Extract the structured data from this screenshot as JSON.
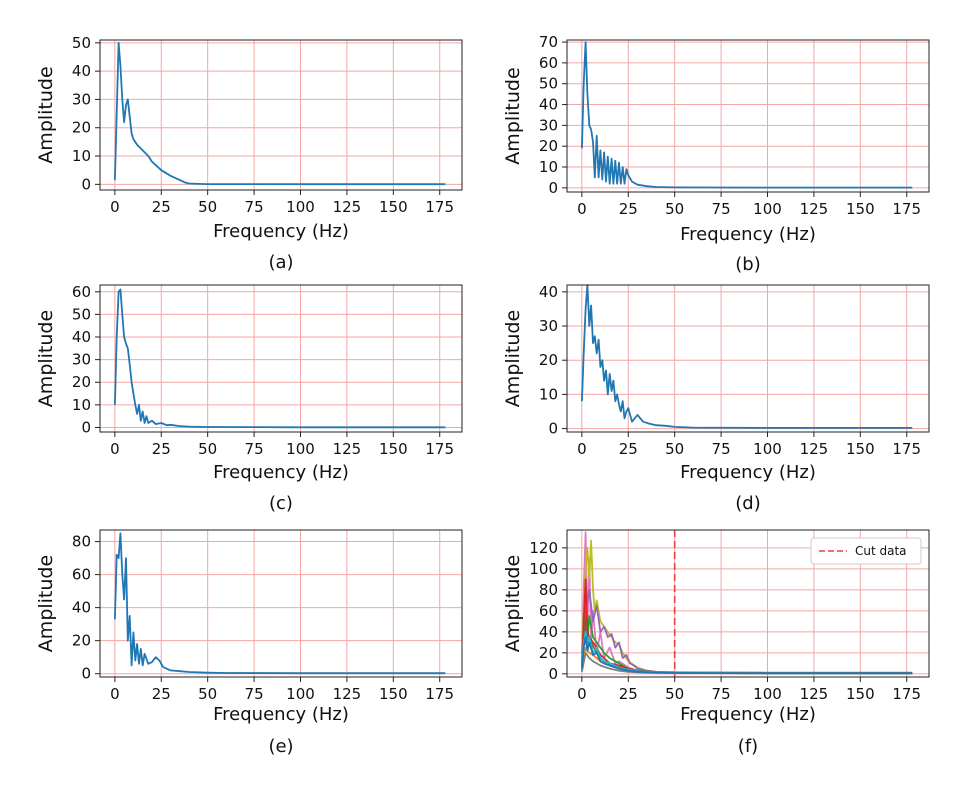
{
  "figure": {
    "panel_ids": [
      "a",
      "b",
      "c",
      "d",
      "e",
      "f"
    ],
    "captions": [
      "(a)",
      "(b)",
      "(c)",
      "(d)",
      "(e)",
      "(f)"
    ]
  },
  "chart_data": [
    {
      "id": "a",
      "type": "line",
      "caption": "(a)",
      "xlabel": "Frequency (Hz)",
      "ylabel": "Amplitude",
      "xlim": [
        -8,
        187
      ],
      "ylim": [
        -2,
        51
      ],
      "xticks": [
        0,
        25,
        50,
        75,
        100,
        125,
        150,
        175
      ],
      "yticks": [
        0,
        10,
        20,
        30,
        40,
        50
      ],
      "grid": true,
      "grid_color": "#f4a6a6",
      "series": [
        {
          "color": "#1f77b4",
          "x": [
            0,
            2,
            3,
            4,
            5,
            6,
            7,
            8,
            9,
            10,
            12,
            15,
            18,
            20,
            25,
            30,
            35,
            38,
            40,
            45,
            50,
            60,
            100,
            140,
            178
          ],
          "y": [
            1.5,
            50,
            42,
            30,
            22,
            28,
            30,
            24,
            18,
            16,
            14,
            12,
            10,
            8,
            5,
            3,
            1.5,
            0.6,
            0.3,
            0.15,
            0.1,
            0.08,
            0.05,
            0.05,
            0.05
          ]
        }
      ]
    },
    {
      "id": "b",
      "type": "line",
      "caption": "(b)",
      "xlabel": "Frequency (Hz)",
      "ylabel": "Amplitude",
      "xlim": [
        -8,
        187
      ],
      "ylim": [
        -2,
        71
      ],
      "xticks": [
        0,
        25,
        50,
        75,
        100,
        125,
        150,
        175
      ],
      "yticks": [
        0,
        10,
        20,
        30,
        40,
        50,
        60,
        70
      ],
      "grid": true,
      "grid_color": "#f4a6a6",
      "series": [
        {
          "color": "#1f77b4",
          "x": [
            0,
            1,
            2,
            3,
            4,
            5,
            6,
            7,
            8,
            9,
            10,
            11,
            12,
            13,
            14,
            15,
            16,
            17,
            18,
            19,
            20,
            21,
            22,
            23,
            24,
            25,
            27,
            30,
            35,
            40,
            50,
            100,
            178
          ],
          "y": [
            19,
            50,
            70,
            45,
            30,
            28,
            22,
            5,
            25,
            5,
            18,
            4,
            17,
            3,
            15,
            2,
            14,
            2,
            13,
            2,
            12,
            2,
            10,
            2,
            9,
            6,
            3,
            1.5,
            0.8,
            0.4,
            0.2,
            0.1,
            0.1
          ]
        }
      ]
    },
    {
      "id": "c",
      "type": "line",
      "caption": "(c)",
      "xlabel": "Frequency (Hz)",
      "ylabel": "Amplitude",
      "xlim": [
        -8,
        187
      ],
      "ylim": [
        -2,
        63
      ],
      "xticks": [
        0,
        25,
        50,
        75,
        100,
        125,
        150,
        175
      ],
      "yticks": [
        0,
        10,
        20,
        30,
        40,
        50,
        60
      ],
      "grid": true,
      "grid_color": "#f4a6a6",
      "series": [
        {
          "color": "#1f77b4",
          "x": [
            0,
            1,
            2,
            3,
            4,
            5,
            6,
            7,
            8,
            9,
            10,
            11,
            12,
            13,
            14,
            15,
            16,
            17,
            18,
            20,
            22,
            25,
            28,
            30,
            35,
            40,
            50,
            100,
            178
          ],
          "y": [
            10,
            40,
            60,
            61,
            50,
            40,
            37,
            35,
            28,
            20,
            15,
            10,
            6,
            10,
            3,
            7,
            2,
            5,
            2,
            3,
            1.5,
            2,
            1,
            1.2,
            0.6,
            0.4,
            0.2,
            0.1,
            0.1
          ]
        }
      ]
    },
    {
      "id": "d",
      "type": "line",
      "caption": "(d)",
      "xlabel": "Frequency (Hz)",
      "ylabel": "Amplitude",
      "xlim": [
        -8,
        187
      ],
      "ylim": [
        -1,
        42
      ],
      "xticks": [
        0,
        25,
        50,
        75,
        100,
        125,
        150,
        175
      ],
      "yticks": [
        0,
        10,
        20,
        30,
        40
      ],
      "grid": true,
      "grid_color": "#f4a6a6",
      "series": [
        {
          "color": "#1f77b4",
          "x": [
            0,
            1,
            2,
            3,
            4,
            5,
            6,
            7,
            8,
            9,
            10,
            11,
            12,
            13,
            14,
            15,
            16,
            17,
            18,
            19,
            20,
            21,
            22,
            23,
            24,
            25,
            27,
            30,
            33,
            36,
            40,
            45,
            50,
            60,
            100,
            178
          ],
          "y": [
            8,
            22,
            35,
            42,
            30,
            36,
            25,
            27,
            22,
            26,
            18,
            20,
            14,
            17,
            10,
            16,
            11,
            14,
            8,
            10,
            7,
            5,
            8,
            3,
            5,
            6,
            2,
            4,
            2,
            1.5,
            1,
            0.8,
            0.5,
            0.3,
            0.2,
            0.2
          ]
        }
      ]
    },
    {
      "id": "e",
      "type": "line",
      "caption": "(e)",
      "xlabel": "Frequency (Hz)",
      "ylabel": "Amplitude",
      "xlim": [
        -8,
        187
      ],
      "ylim": [
        -2,
        87
      ],
      "xticks": [
        0,
        25,
        50,
        75,
        100,
        125,
        150,
        175
      ],
      "yticks": [
        0,
        20,
        40,
        60,
        80
      ],
      "grid": true,
      "grid_color": "#f4a6a6",
      "series": [
        {
          "color": "#1f77b4",
          "x": [
            0,
            1,
            2,
            3,
            4,
            5,
            6,
            7,
            8,
            9,
            10,
            11,
            12,
            13,
            14,
            15,
            16,
            18,
            20,
            22,
            24,
            26,
            28,
            30,
            35,
            40,
            50,
            60,
            100,
            178
          ],
          "y": [
            33,
            72,
            70,
            85,
            60,
            45,
            70,
            20,
            35,
            5,
            25,
            8,
            18,
            6,
            15,
            5,
            12,
            6,
            7,
            10,
            8,
            4,
            3,
            2,
            1.5,
            1,
            0.6,
            0.4,
            0.3,
            0.3
          ]
        }
      ]
    },
    {
      "id": "f",
      "type": "line",
      "caption": "(f)",
      "xlabel": "Frequency (Hz)",
      "ylabel": "Amplitude",
      "xlim": [
        -8,
        187
      ],
      "ylim": [
        -3,
        137
      ],
      "xticks": [
        0,
        25,
        50,
        75,
        100,
        125,
        150,
        175
      ],
      "yticks": [
        0,
        20,
        40,
        60,
        80,
        100,
        120
      ],
      "grid": true,
      "grid_color": "#f4a6a6",
      "cut_line": {
        "x": 50,
        "color": "#e84040",
        "legend": "Cut data",
        "legend_position": "top-right"
      },
      "series": [
        {
          "color": "#e377c2",
          "x": [
            0,
            1,
            2,
            3,
            4,
            5,
            6,
            8,
            10,
            12,
            15,
            18,
            20,
            25,
            30,
            40,
            50,
            100,
            178
          ],
          "y": [
            10,
            80,
            135,
            40,
            110,
            30,
            60,
            20,
            40,
            15,
            25,
            10,
            12,
            6,
            3,
            1.5,
            1,
            0.8,
            0.8
          ]
        },
        {
          "color": "#bcbd22",
          "x": [
            0,
            1,
            2,
            3,
            4,
            5,
            6,
            7,
            8,
            10,
            12,
            14,
            16,
            18,
            20,
            22,
            25,
            30,
            35,
            40,
            50,
            100,
            178
          ],
          "y": [
            20,
            60,
            100,
            120,
            90,
            127,
            80,
            60,
            70,
            50,
            45,
            40,
            35,
            30,
            28,
            20,
            12,
            6,
            3,
            2,
            1.5,
            1.2,
            1.2
          ]
        },
        {
          "color": "#9467bd",
          "x": [
            0,
            2,
            4,
            6,
            8,
            10,
            12,
            14,
            16,
            18,
            20,
            22,
            24,
            26,
            28,
            30,
            35,
            40,
            50,
            100,
            178
          ],
          "y": [
            5,
            60,
            80,
            50,
            65,
            40,
            45,
            35,
            38,
            25,
            30,
            15,
            18,
            10,
            8,
            5,
            3,
            2,
            1.5,
            1,
            1
          ]
        },
        {
          "color": "#2ca02c",
          "x": [
            0,
            1,
            2,
            3,
            4,
            6,
            8,
            10,
            12,
            15,
            18,
            20,
            25,
            30,
            40,
            50,
            100,
            178
          ],
          "y": [
            5,
            40,
            65,
            30,
            55,
            35,
            30,
            25,
            20,
            15,
            12,
            10,
            5,
            3,
            1.5,
            1,
            0.6,
            0.6
          ]
        },
        {
          "color": "#d62728",
          "x": [
            0,
            1,
            2,
            3,
            4,
            6,
            8,
            10,
            12,
            15,
            20,
            25,
            30,
            40,
            50,
            100,
            178
          ],
          "y": [
            10,
            50,
            90,
            40,
            35,
            30,
            25,
            18,
            15,
            10,
            8,
            5,
            3,
            1.5,
            1,
            0.6,
            0.6
          ]
        },
        {
          "color": "#8c564b",
          "x": [
            0,
            1,
            2,
            3,
            5,
            8,
            10,
            12,
            15,
            20,
            25,
            30,
            40,
            50,
            100,
            178
          ],
          "y": [
            3,
            30,
            50,
            25,
            30,
            20,
            15,
            12,
            10,
            6,
            4,
            2.5,
            1.5,
            1,
            0.5,
            0.5
          ]
        },
        {
          "color": "#ff7f0e",
          "x": [
            0,
            1,
            2,
            4,
            6,
            8,
            10,
            12,
            15,
            20,
            25,
            30,
            40,
            50,
            100,
            178
          ],
          "y": [
            2,
            15,
            25,
            20,
            18,
            15,
            12,
            10,
            8,
            5,
            3,
            2,
            1.2,
            0.8,
            0.4,
            0.4
          ]
        },
        {
          "color": "#17becf",
          "x": [
            0,
            1,
            2,
            3,
            4,
            6,
            8,
            10,
            12,
            15,
            20,
            25,
            30,
            40,
            50,
            100,
            178
          ],
          "y": [
            10,
            30,
            40,
            28,
            35,
            20,
            25,
            15,
            12,
            10,
            6,
            4,
            2.5,
            1.5,
            1,
            0.5,
            0.5
          ]
        },
        {
          "color": "#7f7f7f",
          "x": [
            0,
            2,
            4,
            6,
            8,
            10,
            15,
            20,
            25,
            30,
            40,
            50,
            100,
            178
          ],
          "y": [
            2,
            20,
            15,
            12,
            10,
            8,
            5,
            3,
            2,
            1.5,
            1,
            0.7,
            0.4,
            0.4
          ]
        },
        {
          "color": "#1f77b4",
          "x": [
            0,
            1,
            2,
            3,
            4,
            6,
            8,
            10,
            12,
            15,
            20,
            25,
            30,
            40,
            50,
            100,
            178
          ],
          "y": [
            5,
            25,
            35,
            22,
            30,
            18,
            20,
            12,
            10,
            8,
            5,
            3,
            2,
            1.2,
            0.8,
            0.5,
            0.5
          ]
        }
      ]
    }
  ]
}
